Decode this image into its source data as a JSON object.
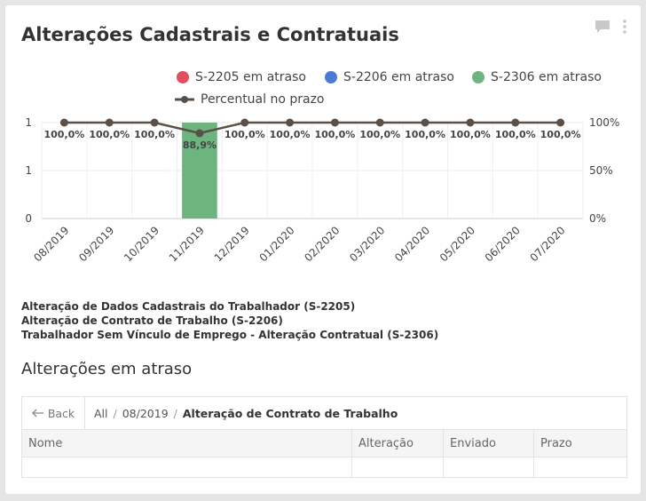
{
  "widget": {
    "title": "Alterações Cadastrais e Contratuais"
  },
  "legend": [
    {
      "label": "S-2205 em atraso",
      "color": "#e05060"
    },
    {
      "label": "S-2206 em atraso",
      "color": "#4a7bd6"
    },
    {
      "label": "S-2306 em atraso",
      "color": "#6db57e"
    },
    {
      "label": "Percentual no prazo",
      "color": "#5b5048"
    }
  ],
  "chart_data": {
    "type": "bar",
    "categories": [
      "08/2019",
      "09/2019",
      "10/2019",
      "11/2019",
      "12/2019",
      "01/2020",
      "02/2020",
      "03/2020",
      "04/2020",
      "05/2020",
      "06/2020",
      "07/2020"
    ],
    "series": [
      {
        "name": "S-2205 em atraso",
        "type": "bar",
        "color": "#e05060",
        "values": [
          0,
          0,
          0,
          0,
          0,
          0,
          0,
          0,
          0,
          0,
          0,
          0
        ]
      },
      {
        "name": "S-2206 em atraso",
        "type": "bar",
        "color": "#4a7bd6",
        "values": [
          0,
          0,
          0,
          0,
          0,
          0,
          0,
          0,
          0,
          0,
          0,
          0
        ]
      },
      {
        "name": "S-2306 em atraso",
        "type": "bar",
        "color": "#6db57e",
        "values": [
          0,
          0,
          0,
          1,
          0,
          0,
          0,
          0,
          0,
          0,
          0,
          0
        ]
      },
      {
        "name": "Percentual no prazo",
        "type": "line",
        "color": "#5b5048",
        "axis": "right",
        "values": [
          100,
          100,
          100,
          88.9,
          100,
          100,
          100,
          100,
          100,
          100,
          100,
          100
        ]
      }
    ],
    "data_labels": [
      "100,0%",
      "100,0%",
      "100,0%",
      "88,9%",
      "100,0%",
      "100,0%",
      "100,0%",
      "100,0%",
      "100,0%",
      "100,0%",
      "100,0%",
      "100,0%"
    ],
    "left_axis": {
      "ticks": [
        "0",
        "1",
        "1"
      ],
      "ylim": [
        0,
        1
      ]
    },
    "right_axis": {
      "ticks": [
        "0%",
        "50%",
        "100%"
      ],
      "ylim": [
        0,
        100
      ]
    },
    "grid": true,
    "legend_position": "top-right"
  },
  "descriptions": [
    "Alteração de Dados Cadastrais do Trabalhador (S-2205)",
    "Alteração de Contrato de Trabalho (S-2206)",
    "Trabalhador Sem Vínculo de Emprego - Alteração Contratual (S-2306)"
  ],
  "section": {
    "title": "Alterações em atraso"
  },
  "table": {
    "back_label": "Back",
    "breadcrumb": [
      "All",
      "08/2019",
      "Alteração de Contrato de Trabalho"
    ],
    "columns": [
      "Nome",
      "Alteração",
      "Enviado",
      "Prazo"
    ]
  }
}
